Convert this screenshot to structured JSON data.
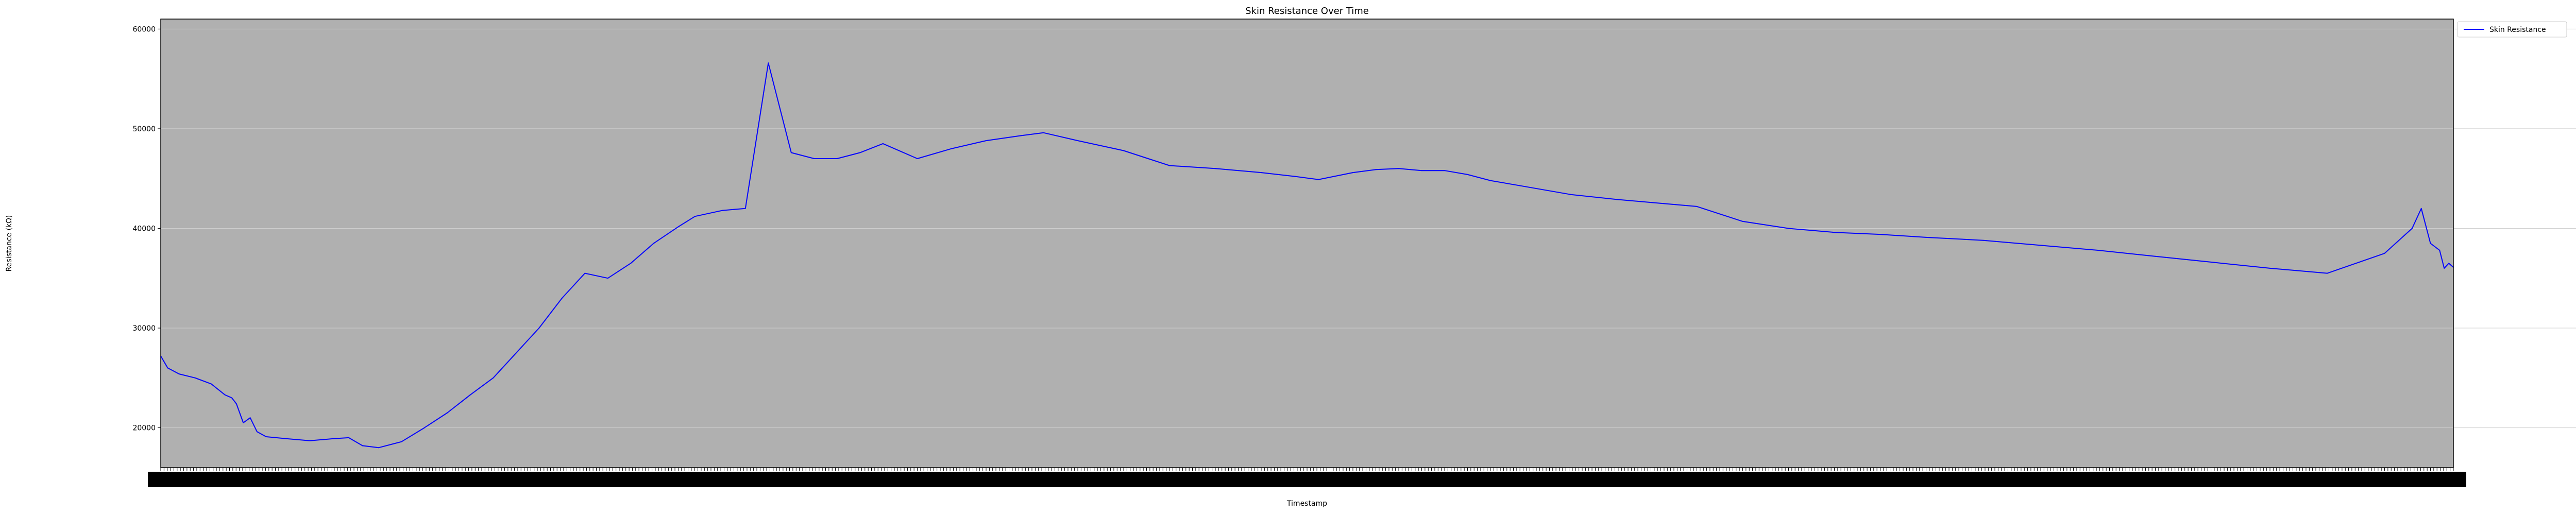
{
  "chart_data": {
    "type": "line",
    "title": "Skin Resistance Over Time",
    "xlabel": "Timestamp",
    "ylabel": "Resistance (kΩ)",
    "ylim": [
      16000,
      61000
    ],
    "yticks": [
      20000,
      30000,
      40000,
      50000,
      60000
    ],
    "xlim": [
      0,
      100
    ],
    "grid": true,
    "legend": {
      "placement": "top-right",
      "entries": [
        "Skin Resistance"
      ]
    },
    "colors": {
      "series": "#0000ff",
      "background": "#b0b0b0"
    },
    "series": [
      {
        "name": "Skin Resistance",
        "x": [
          0,
          0.3,
          0.8,
          1.5,
          2.2,
          2.8,
          3.1,
          3.3,
          3.6,
          3.9,
          4.2,
          4.6,
          5.5,
          6.5,
          7.5,
          8.2,
          8.8,
          9.5,
          10.5,
          11.5,
          12.5,
          13.5,
          14.5,
          15.5,
          16.5,
          17.5,
          18.5,
          19.5,
          20.5,
          21.5,
          22.6,
          23.3,
          24.5,
          25.5,
          26.5,
          27.5,
          28.5,
          29.5,
          30.5,
          31.5,
          33.0,
          34.5,
          36.0,
          37.5,
          38.5,
          40.0,
          42.0,
          44.0,
          46.0,
          48.0,
          49.5,
          50.5,
          52.0,
          53.0,
          54.0,
          55.0,
          56.0,
          57.0,
          58.0,
          59.5,
          61.5,
          63.5,
          65.0,
          67.0,
          69.0,
          71.0,
          73.0,
          75.0,
          77.0,
          79.5,
          82.0,
          84.5,
          87.0,
          89.5,
          92.0,
          94.5,
          97.0,
          98.2,
          98.6,
          99.0,
          99.4,
          99.6,
          99.8,
          100.0
        ],
        "values": [
          27200,
          26000,
          25400,
          25000,
          24400,
          23300,
          23000,
          22400,
          20500,
          21000,
          19600,
          19100,
          18900,
          18700,
          18900,
          19000,
          18200,
          18000,
          18600,
          20000,
          21500,
          23300,
          25000,
          27500,
          30000,
          33000,
          35500,
          35000,
          36500,
          38500,
          40200,
          41200,
          41800,
          42000,
          56600,
          47600,
          47000,
          47000,
          47600,
          48500,
          47000,
          48000,
          48800,
          49300,
          49600,
          48800,
          47800,
          46300,
          46000,
          45600,
          45200,
          44900,
          45600,
          45900,
          46000,
          45800,
          45800,
          45400,
          44800,
          44200,
          43400,
          42900,
          42600,
          42200,
          40700,
          40000,
          39600,
          39400,
          39100,
          38800,
          38300,
          37800,
          37200,
          36600,
          36000,
          35500,
          37500,
          40000,
          42000,
          38500,
          37800,
          36000,
          36500,
          36100
        ]
      }
    ]
  }
}
